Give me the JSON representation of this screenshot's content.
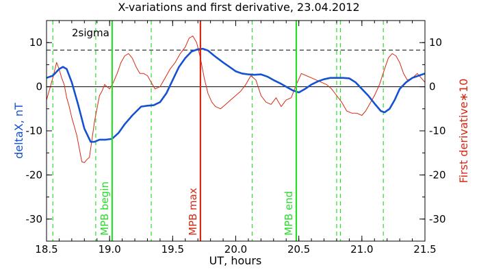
{
  "chart_data": {
    "type": "line",
    "title": "X-variations and first derivative, 23.04.2012",
    "xlabel": "UT, hours",
    "ylabel_left": "deltaX, nT",
    "ylabel_right": "First derivative∗10",
    "xlim": [
      18.5,
      21.5
    ],
    "ylim": [
      -35,
      15
    ],
    "x_ticks": [
      18.5,
      19.0,
      19.5,
      20.0,
      20.5,
      21.0,
      21.5
    ],
    "x_tick_labels": [
      "18.5",
      "19.0",
      "19.5",
      "20.0",
      "20.5",
      "21.0",
      "21.5"
    ],
    "y_ticks": [
      -30,
      -20,
      -10,
      0,
      10
    ],
    "y_tick_labels": [
      "-30",
      "-20",
      "-10",
      "0",
      "10"
    ],
    "zero_line": 0,
    "threshold": {
      "value": 8.3,
      "label": "2sigma"
    },
    "colors": {
      "deltaX": "#1450d2",
      "derivative": "#d72812",
      "markers": "#28dc28",
      "max": "#d72812"
    },
    "series": [
      {
        "key": "deltaX",
        "color": "#1450d2",
        "x": [
          18.5,
          18.55,
          18.6,
          18.63,
          18.66,
          18.7,
          18.75,
          18.8,
          18.85,
          18.88,
          18.92,
          18.97,
          19.02,
          19.07,
          19.12,
          19.18,
          19.25,
          19.3,
          19.35,
          19.4,
          19.45,
          19.5,
          19.55,
          19.6,
          19.65,
          19.7,
          19.74,
          19.78,
          19.83,
          19.9,
          19.95,
          20.0,
          20.05,
          20.1,
          20.15,
          20.2,
          20.25,
          20.3,
          20.35,
          20.4,
          20.45,
          20.5,
          20.55,
          20.6,
          20.65,
          20.7,
          20.75,
          20.8,
          20.85,
          20.9,
          20.95,
          21.0,
          21.05,
          21.1,
          21.15,
          21.18,
          21.22,
          21.26,
          21.3,
          21.35,
          21.4,
          21.45,
          21.5
        ],
        "y": [
          2.0,
          2.5,
          4.0,
          4.5,
          4.0,
          1.0,
          -4.0,
          -9.5,
          -12.5,
          -12.5,
          -12.0,
          -12.0,
          -11.8,
          -10.5,
          -8.5,
          -6.5,
          -4.5,
          -4.3,
          -4.2,
          -3.5,
          -1.5,
          1.5,
          4.5,
          6.5,
          8.0,
          8.5,
          8.6,
          8.2,
          7.0,
          5.5,
          4.5,
          3.5,
          3.0,
          2.8,
          2.7,
          2.8,
          2.3,
          1.5,
          0.8,
          0.0,
          -0.8,
          -1.3,
          -0.5,
          0.5,
          1.2,
          1.7,
          2.0,
          2.0,
          2.0,
          1.9,
          1.0,
          -0.5,
          -2.0,
          -3.8,
          -5.5,
          -5.8,
          -5.0,
          -3.0,
          -0.5,
          1.0,
          2.0,
          2.5,
          3.0
        ]
      },
      {
        "key": "derivative",
        "color": "#d72812",
        "x": [
          18.5,
          18.52,
          18.55,
          18.58,
          18.6,
          18.62,
          18.64,
          18.66,
          18.68,
          18.7,
          18.72,
          18.74,
          18.76,
          18.78,
          18.8,
          18.82,
          18.84,
          18.86,
          18.88,
          18.9,
          18.92,
          18.94,
          18.96,
          18.98,
          19.0,
          19.03,
          19.06,
          19.09,
          19.12,
          19.15,
          19.18,
          19.21,
          19.24,
          19.27,
          19.3,
          19.33,
          19.36,
          19.4,
          19.44,
          19.48,
          19.52,
          19.56,
          19.6,
          19.63,
          19.66,
          19.69,
          19.72,
          19.75,
          19.78,
          19.81,
          19.84,
          19.88,
          19.92,
          19.96,
          20.0,
          20.04,
          20.08,
          20.12,
          20.16,
          20.2,
          20.24,
          20.28,
          20.32,
          20.36,
          20.4,
          20.44,
          20.48,
          20.52,
          20.56,
          20.6,
          20.64,
          20.68,
          20.72,
          20.76,
          20.8,
          20.84,
          20.88,
          20.92,
          20.96,
          21.0,
          21.03,
          21.06,
          21.1,
          21.14,
          21.18,
          21.21,
          21.24,
          21.27,
          21.3,
          21.33,
          21.36,
          21.4,
          21.44,
          21.47,
          21.5
        ],
        "y": [
          -3.0,
          -1.0,
          2.0,
          5.5,
          4.0,
          2.0,
          0.5,
          -2.5,
          -4.5,
          -7.0,
          -9.0,
          -11.0,
          -14.0,
          -17.0,
          -17.2,
          -16.5,
          -16.0,
          -12.0,
          -8.0,
          -5.0,
          -2.0,
          -1.0,
          0.5,
          0.0,
          -0.5,
          1.0,
          3.0,
          5.5,
          7.0,
          7.5,
          6.5,
          4.5,
          3.0,
          3.0,
          2.5,
          1.0,
          -0.5,
          0.0,
          2.0,
          4.0,
          5.5,
          7.5,
          9.0,
          11.0,
          11.5,
          10.0,
          6.5,
          2.0,
          -1.5,
          -3.5,
          -4.5,
          -5.0,
          -4.0,
          -3.0,
          -2.0,
          -1.0,
          0.5,
          2.5,
          1.5,
          -2.0,
          -3.5,
          -4.0,
          -2.5,
          -4.5,
          -3.0,
          -2.5,
          0.5,
          3.0,
          2.5,
          2.0,
          1.5,
          1.0,
          0.5,
          -0.5,
          -2.0,
          -3.5,
          -5.5,
          -6.0,
          -6.0,
          -6.5,
          -5.5,
          -4.0,
          -2.0,
          0.5,
          4.0,
          6.5,
          7.5,
          7.0,
          5.5,
          3.0,
          1.5,
          2.0,
          3.0,
          2.0,
          1.0
        ]
      }
    ],
    "green_dashed": [
      18.55,
      18.89,
      19.33,
      20.13,
      20.8,
      20.83,
      21.17
    ],
    "markers": [
      {
        "x": 19.02,
        "label": "MPB begin",
        "color": "#28dc28"
      },
      {
        "x": 19.72,
        "label": "MPB max",
        "color": "#d72812"
      },
      {
        "x": 20.48,
        "label": "MPB end",
        "color": "#28dc28"
      }
    ]
  }
}
